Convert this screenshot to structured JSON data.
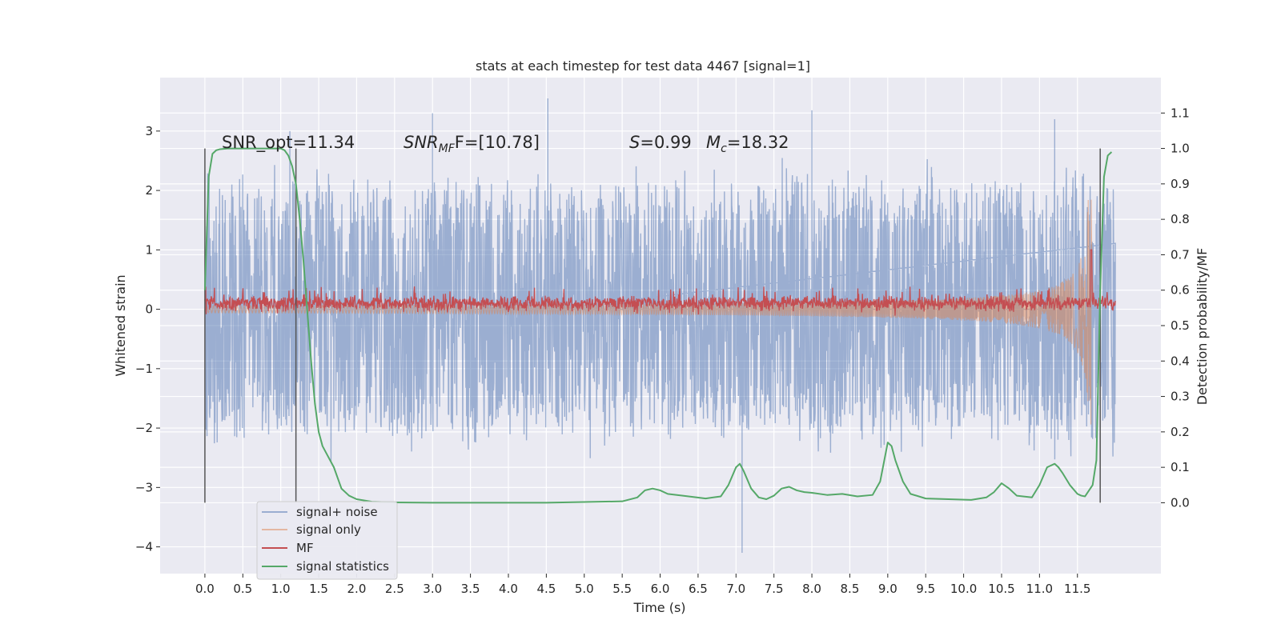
{
  "chart_data": {
    "type": "line",
    "title": "stats at each timestep for test data 4467 [signal=1]",
    "xlabel": "Time (s)",
    "ylabel": "Whitened strain",
    "y2label": "Detection probability/MF",
    "xlim": [
      -0.59,
      12.6
    ],
    "ylim": [
      -4.45,
      3.9
    ],
    "y2lim": [
      -0.2,
      1.2
    ],
    "x_ticks": [
      0.0,
      0.5,
      1.0,
      1.5,
      2.0,
      2.5,
      3.0,
      3.5,
      4.0,
      4.5,
      5.0,
      5.5,
      6.0,
      6.5,
      7.0,
      7.5,
      8.0,
      8.5,
      9.0,
      9.5,
      10.0,
      10.5,
      11.0,
      11.5
    ],
    "x_tick_labels": [
      "0.0",
      "0.5",
      "1.0",
      "1.5",
      "2.0",
      "2.5",
      "3.0",
      "3.5",
      "4.0",
      "4.5",
      "5.0",
      "5.5",
      "6.0",
      "6.5",
      "7.0",
      "7.5",
      "8.0",
      "8.5",
      "9.0",
      "9.5",
      "10.0",
      "10.5",
      "11.0",
      "11.5"
    ],
    "y_ticks": [
      -4,
      -3,
      -2,
      -1,
      0,
      1,
      2,
      3
    ],
    "y_tick_labels": [
      "−4",
      "−3",
      "−2",
      "−1",
      "0",
      "1",
      "2",
      "3"
    ],
    "y2_ticks": [
      0.0,
      0.1,
      0.2,
      0.3,
      0.4,
      0.5,
      0.6,
      0.7,
      0.8,
      0.9,
      1.0,
      1.1
    ],
    "y2_tick_labels": [
      "0.0",
      "0.1",
      "0.2",
      "0.3",
      "0.4",
      "0.5",
      "0.6",
      "0.7",
      "0.8",
      "0.9",
      "1.0",
      "1.1"
    ],
    "grid": true,
    "legend_position": "lower-left",
    "annotations": {
      "snr_opt": "SNR_opt=11.34",
      "snr_mf_name": "SNR",
      "snr_mf_sub": "MF",
      "snr_mf_value": "F=[10.78]",
      "s_name": "S",
      "s_value": "=0.99",
      "mc_name": "M",
      "mc_sub": "c",
      "mc_value": "=18.32"
    },
    "vlines_x": [
      0.0,
      1.2,
      11.8
    ],
    "series": [
      {
        "name": "signal+ noise",
        "color": "#4c72b0",
        "kind": "noise",
        "x_range": [
          0.0,
          12.0
        ],
        "amplitude_core": [
          -1.5,
          1.5
        ],
        "extremes": [
          -4.1,
          3.55
        ]
      },
      {
        "name": "signal only",
        "color": "#dd8452",
        "kind": "chirp",
        "x_range": [
          0.0,
          11.72
        ],
        "peak_amplitude": 2.0,
        "merger_time": 11.68
      },
      {
        "name": "MF",
        "color": "#c44e52",
        "kind": "band",
        "x_range": [
          0.0,
          12.0
        ],
        "mean": 0.1,
        "band": [
          -0.05,
          0.35
        ],
        "spike": {
          "x": 11.68,
          "y": 1.0
        }
      },
      {
        "name": "signal statistics",
        "color": "#55a868",
        "kind": "curve",
        "x": [
          0.0,
          0.05,
          0.1,
          0.15,
          0.2,
          0.3,
          0.5,
          0.8,
          1.0,
          1.05,
          1.1,
          1.15,
          1.2,
          1.25,
          1.3,
          1.35,
          1.4,
          1.45,
          1.5,
          1.55,
          1.6,
          1.7,
          1.75,
          1.8,
          1.9,
          2.0,
          2.2,
          2.5,
          3.0,
          3.5,
          4.0,
          4.5,
          5.0,
          5.5,
          5.7,
          5.8,
          5.9,
          6.0,
          6.1,
          6.3,
          6.6,
          6.8,
          6.9,
          7.0,
          7.05,
          7.1,
          7.2,
          7.3,
          7.4,
          7.5,
          7.6,
          7.7,
          7.8,
          7.9,
          8.0,
          8.2,
          8.4,
          8.6,
          8.8,
          8.9,
          9.0,
          9.05,
          9.1,
          9.2,
          9.3,
          9.5,
          9.8,
          10.1,
          10.3,
          10.4,
          10.5,
          10.6,
          10.7,
          10.9,
          11.0,
          11.1,
          11.2,
          11.25,
          11.3,
          11.4,
          11.5,
          11.55,
          11.6,
          11.7,
          11.75,
          11.8,
          11.85,
          11.9,
          11.95
        ],
        "y": [
          0.6,
          0.92,
          0.985,
          0.995,
          0.998,
          1.0,
          1.0,
          1.0,
          1.0,
          0.995,
          0.98,
          0.95,
          0.9,
          0.8,
          0.68,
          0.54,
          0.4,
          0.28,
          0.2,
          0.16,
          0.14,
          0.1,
          0.07,
          0.04,
          0.02,
          0.01,
          0.003,
          0.001,
          0.0,
          0.0,
          0.0,
          0.0,
          0.002,
          0.004,
          0.015,
          0.035,
          0.04,
          0.035,
          0.025,
          0.02,
          0.012,
          0.018,
          0.05,
          0.1,
          0.11,
          0.09,
          0.04,
          0.015,
          0.01,
          0.02,
          0.04,
          0.045,
          0.035,
          0.03,
          0.028,
          0.022,
          0.025,
          0.018,
          0.022,
          0.06,
          0.17,
          0.16,
          0.12,
          0.06,
          0.025,
          0.012,
          0.01,
          0.008,
          0.015,
          0.03,
          0.055,
          0.04,
          0.02,
          0.015,
          0.05,
          0.1,
          0.11,
          0.1,
          0.085,
          0.05,
          0.025,
          0.02,
          0.018,
          0.05,
          0.12,
          0.6,
          0.92,
          0.98,
          0.99
        ]
      }
    ]
  }
}
